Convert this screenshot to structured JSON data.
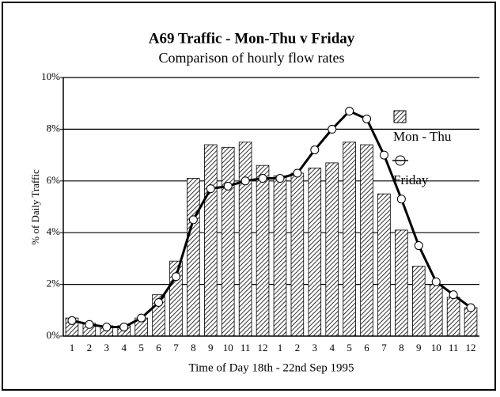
{
  "chart_data": {
    "type": "bar_line",
    "title": "A69 Traffic - Mon-Thu v Friday",
    "subtitle": "Comparison of hourly flow rates",
    "x_label": "Time of Day 18th - 22nd Sep 1995",
    "y_label": "% of Daily Traffic",
    "categories": [
      "1",
      "2",
      "3",
      "4",
      "5",
      "6",
      "7",
      "8",
      "9",
      "10",
      "11",
      "12",
      "1",
      "2",
      "3",
      "4",
      "5",
      "6",
      "7",
      "8",
      "9",
      "10",
      "11",
      "12"
    ],
    "series": [
      {
        "name": "Mon - Thu",
        "kind": "bar",
        "color": "#000000",
        "values": [
          0.7,
          0.5,
          0.4,
          0.4,
          0.7,
          1.6,
          2.9,
          6.1,
          7.4,
          7.3,
          7.5,
          6.6,
          6.2,
          6.3,
          6.5,
          6.7,
          7.5,
          7.4,
          5.5,
          4.1,
          2.7,
          2.0,
          1.5,
          1.1
        ]
      },
      {
        "name": "Friday",
        "kind": "line",
        "color": "#000000",
        "values": [
          0.6,
          0.45,
          0.35,
          0.35,
          0.7,
          1.3,
          2.3,
          4.5,
          5.7,
          5.8,
          6.0,
          6.1,
          6.1,
          6.3,
          7.2,
          8.0,
          8.7,
          8.4,
          7.0,
          5.3,
          3.5,
          2.1,
          1.6,
          1.1
        ]
      }
    ],
    "ylim": [
      0,
      10
    ],
    "yticks": [
      {
        "value": 0,
        "label": "0%"
      },
      {
        "value": 2,
        "label": "2%"
      },
      {
        "value": 4,
        "label": "4%"
      },
      {
        "value": 6,
        "label": "6%"
      },
      {
        "value": 8,
        "label": "8%"
      },
      {
        "value": 10,
        "label": "10%"
      }
    ],
    "grid": true,
    "legend": "right"
  }
}
